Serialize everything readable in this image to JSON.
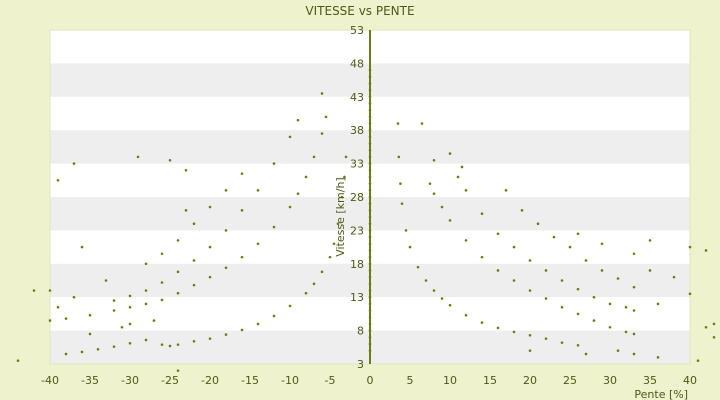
{
  "chart_data": {
    "type": "scatter",
    "title": "VITESSE vs PENTE",
    "xlabel": "Pente [%]",
    "ylabel": "Vitesse [km/h]",
    "xlim": [
      -40,
      40
    ],
    "ylim": [
      3,
      53
    ],
    "x_ticks": [
      -40,
      -35,
      -30,
      -25,
      -20,
      -15,
      -10,
      -5,
      0,
      5,
      10,
      15,
      20,
      25,
      30,
      35,
      40
    ],
    "y_ticks": [
      3,
      8,
      13,
      18,
      23,
      28,
      33,
      38,
      43,
      48,
      53
    ],
    "grid": "horizontal alternating bands",
    "legend": "none",
    "marker_color": "#6b7d12",
    "band_color": "#eeeeee",
    "plot_bg": "#ffffff",
    "page_bg": "#eef2cd",
    "series": [
      {
        "points": [
          [
            -38,
            4.5
          ],
          [
            -36,
            4.8
          ],
          [
            -34,
            5.2
          ],
          [
            -32,
            5.6
          ],
          [
            -30,
            6.1
          ],
          [
            -28,
            6.6
          ],
          [
            -26,
            5.9
          ],
          [
            -25,
            5.7
          ],
          [
            -24,
            5.9
          ],
          [
            -22,
            6.4
          ],
          [
            -20,
            6.8
          ],
          [
            -18,
            7.4
          ],
          [
            -16,
            8.1
          ],
          [
            -14,
            9.0
          ],
          [
            -12,
            10.2
          ],
          [
            -10,
            11.7
          ],
          [
            -8,
            13.6
          ],
          [
            -7,
            15.0
          ],
          [
            -6,
            16.8
          ],
          [
            -5,
            19.0
          ],
          [
            -4.5,
            21.0
          ],
          [
            -4,
            24.0
          ],
          [
            -3.5,
            28.0
          ],
          [
            -3.2,
            31.0
          ],
          [
            -3,
            34.0
          ],
          [
            -40,
            9.5
          ],
          [
            -38,
            9.8
          ],
          [
            -35,
            10.3
          ],
          [
            -32,
            11.0
          ],
          [
            -30,
            11.5
          ],
          [
            -28,
            12.0
          ],
          [
            -26,
            12.6
          ],
          [
            -24,
            13.6
          ],
          [
            -22,
            14.8
          ],
          [
            -20,
            16.0
          ],
          [
            -18,
            17.4
          ],
          [
            -16,
            19.0
          ],
          [
            -14,
            21.0
          ],
          [
            -12,
            23.5
          ],
          [
            -10,
            26.5
          ],
          [
            -9,
            28.5
          ],
          [
            -8,
            31.0
          ],
          [
            -7,
            34.0
          ],
          [
            -6,
            37.5
          ],
          [
            -5.5,
            40.0
          ],
          [
            -32,
            12.5
          ],
          [
            -30,
            13.2
          ],
          [
            -28,
            14.0
          ],
          [
            -26,
            15.2
          ],
          [
            -24,
            16.8
          ],
          [
            -22,
            18.5
          ],
          [
            -20,
            20.5
          ],
          [
            -18,
            23.0
          ],
          [
            -16,
            26.0
          ],
          [
            -14,
            29.0
          ],
          [
            -12,
            33.0
          ],
          [
            -10,
            37.0
          ],
          [
            -9,
            39.5
          ],
          [
            -26,
            19.5
          ],
          [
            -24,
            21.5
          ],
          [
            -22,
            24.0
          ],
          [
            -20,
            26.5
          ],
          [
            -18,
            29.0
          ],
          [
            -16,
            31.5
          ],
          [
            -40,
            14.0
          ],
          [
            -39,
            30.5
          ],
          [
            -37,
            33.0
          ],
          [
            -36,
            20.5
          ],
          [
            -35,
            7.5
          ],
          [
            -33,
            15.5
          ],
          [
            -29,
            34.0
          ],
          [
            -28,
            18.0
          ],
          [
            -25,
            33.5
          ],
          [
            -23,
            32.0
          ],
          [
            -23,
            26.0
          ],
          [
            -44,
            3.5
          ],
          [
            -42,
            14.0
          ],
          [
            -39,
            11.5
          ],
          [
            -37,
            13.0
          ],
          [
            -31,
            8.5
          ],
          [
            -30,
            9.0
          ],
          [
            -27,
            9.5
          ],
          [
            -24,
            2.0
          ],
          [
            -6,
            43.5
          ],
          [
            3.5,
            39.0
          ],
          [
            3.6,
            34.0
          ],
          [
            3.8,
            30.0
          ],
          [
            4,
            27.0
          ],
          [
            4.5,
            23.0
          ],
          [
            5,
            20.5
          ],
          [
            6,
            17.5
          ],
          [
            7,
            15.5
          ],
          [
            8,
            14.0
          ],
          [
            9,
            12.8
          ],
          [
            10,
            11.8
          ],
          [
            12,
            10.3
          ],
          [
            14,
            9.2
          ],
          [
            16,
            8.4
          ],
          [
            18,
            7.8
          ],
          [
            20,
            7.3
          ],
          [
            22,
            6.8
          ],
          [
            24,
            6.2
          ],
          [
            26,
            5.8
          ],
          [
            7.5,
            30.0
          ],
          [
            8,
            28.5
          ],
          [
            9,
            26.5
          ],
          [
            10,
            24.5
          ],
          [
            12,
            21.5
          ],
          [
            14,
            19.0
          ],
          [
            16,
            17.0
          ],
          [
            18,
            15.5
          ],
          [
            20,
            14.0
          ],
          [
            22,
            12.8
          ],
          [
            24,
            11.5
          ],
          [
            26,
            10.5
          ],
          [
            28,
            9.5
          ],
          [
            30,
            8.5
          ],
          [
            32,
            7.8
          ],
          [
            33,
            7.5
          ],
          [
            11,
            31.0
          ],
          [
            12,
            29.0
          ],
          [
            14,
            25.5
          ],
          [
            16,
            22.5
          ],
          [
            18,
            20.5
          ],
          [
            20,
            18.5
          ],
          [
            22,
            17.0
          ],
          [
            24,
            15.5
          ],
          [
            26,
            14.2
          ],
          [
            28,
            13.0
          ],
          [
            30,
            12.0
          ],
          [
            32,
            11.5
          ],
          [
            33,
            11.0
          ],
          [
            17,
            29.0
          ],
          [
            19,
            26.0
          ],
          [
            21,
            24.0
          ],
          [
            23,
            22.0
          ],
          [
            25,
            20.5
          ],
          [
            27,
            18.5
          ],
          [
            29,
            17.0
          ],
          [
            31,
            15.8
          ],
          [
            33,
            14.5
          ],
          [
            6.5,
            39.0
          ],
          [
            8,
            33.5
          ],
          [
            10,
            34.5
          ],
          [
            11.5,
            32.5
          ],
          [
            26,
            22.5
          ],
          [
            29,
            21.0
          ],
          [
            33,
            19.5
          ],
          [
            35,
            21.5
          ],
          [
            35,
            17.0
          ],
          [
            38,
            16.0
          ],
          [
            40,
            20.5
          ],
          [
            40,
            13.5
          ],
          [
            42,
            8.5
          ],
          [
            42,
            20.0
          ],
          [
            43,
            9.0
          ],
          [
            43,
            7.0
          ],
          [
            44,
            23.0
          ],
          [
            41,
            3.5
          ],
          [
            36,
            4.0
          ],
          [
            33,
            4.5
          ],
          [
            20,
            5.0
          ],
          [
            27,
            4.5
          ],
          [
            31,
            5.0
          ],
          [
            36,
            12.0
          ]
        ]
      },
      {
        "points": [
          [
            0,
            5.0
          ],
          [
            0,
            6.0
          ],
          [
            0,
            7.0
          ],
          [
            0,
            8.0
          ],
          [
            0,
            9.0
          ],
          [
            0,
            10.0
          ],
          [
            0,
            11.0
          ],
          [
            0,
            12.0
          ],
          [
            0,
            13.0
          ],
          [
            0,
            14.0
          ],
          [
            0,
            15.0
          ],
          [
            0,
            16.0
          ],
          [
            0,
            17.0
          ],
          [
            0,
            18.0
          ],
          [
            0,
            19.0
          ],
          [
            0,
            20.0
          ],
          [
            0,
            21.0
          ],
          [
            0,
            22.0
          ],
          [
            0,
            23.0
          ],
          [
            0,
            24.0
          ],
          [
            0,
            25.0
          ],
          [
            0,
            26.0
          ],
          [
            0,
            27.0
          ],
          [
            0,
            28.0
          ],
          [
            0,
            29.0
          ],
          [
            0,
            30.0
          ],
          [
            0,
            31.0
          ],
          [
            0,
            32.0
          ],
          [
            0,
            33.0
          ],
          [
            0,
            34.0
          ],
          [
            0,
            35.0
          ],
          [
            0,
            36.0
          ],
          [
            0,
            37.0
          ],
          [
            0,
            38.0
          ],
          [
            0,
            39.0
          ],
          [
            0,
            40.0
          ],
          [
            0,
            41.0
          ],
          [
            0,
            42.0
          ],
          [
            0,
            43.0
          ],
          [
            0,
            44.0
          ],
          [
            0,
            45.0
          ],
          [
            0,
            46.0
          ],
          [
            0,
            47.0
          ]
        ]
      }
    ]
  }
}
